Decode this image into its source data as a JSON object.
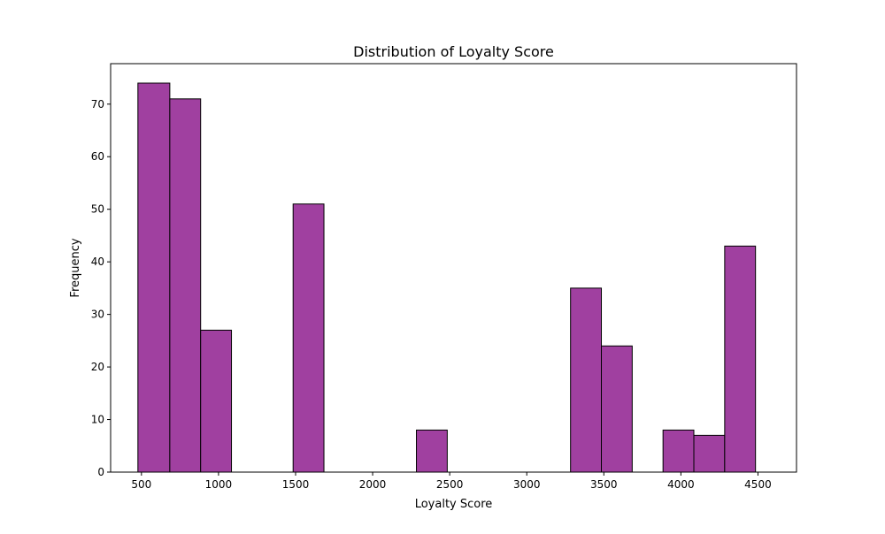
{
  "chart_data": {
    "type": "bar",
    "title": "Distribution of Loyalty Score",
    "xlabel": "Loyalty Score",
    "ylabel": "Frequency",
    "xlim": [
      300,
      4750
    ],
    "ylim": [
      0,
      77.7
    ],
    "xticks": [
      500,
      1000,
      1500,
      2000,
      2500,
      3000,
      3500,
      4000,
      4500
    ],
    "yticks": [
      0,
      10,
      20,
      30,
      40,
      50,
      60,
      70
    ],
    "grid": false,
    "bin_edges": [
      477,
      684,
      884,
      1084,
      1284,
      1484,
      1684,
      1884,
      2084,
      2284,
      2484,
      2684,
      2884,
      3084,
      3284,
      3484,
      3684,
      3884,
      4084,
      4284,
      4484
    ],
    "values": [
      74,
      71,
      27,
      0,
      0,
      51,
      0,
      0,
      0,
      8,
      0,
      0,
      0,
      0,
      35,
      24,
      0,
      8,
      7,
      43
    ],
    "colors": {
      "bar_fill": "#a040a0",
      "bar_edge": "#000000"
    }
  }
}
